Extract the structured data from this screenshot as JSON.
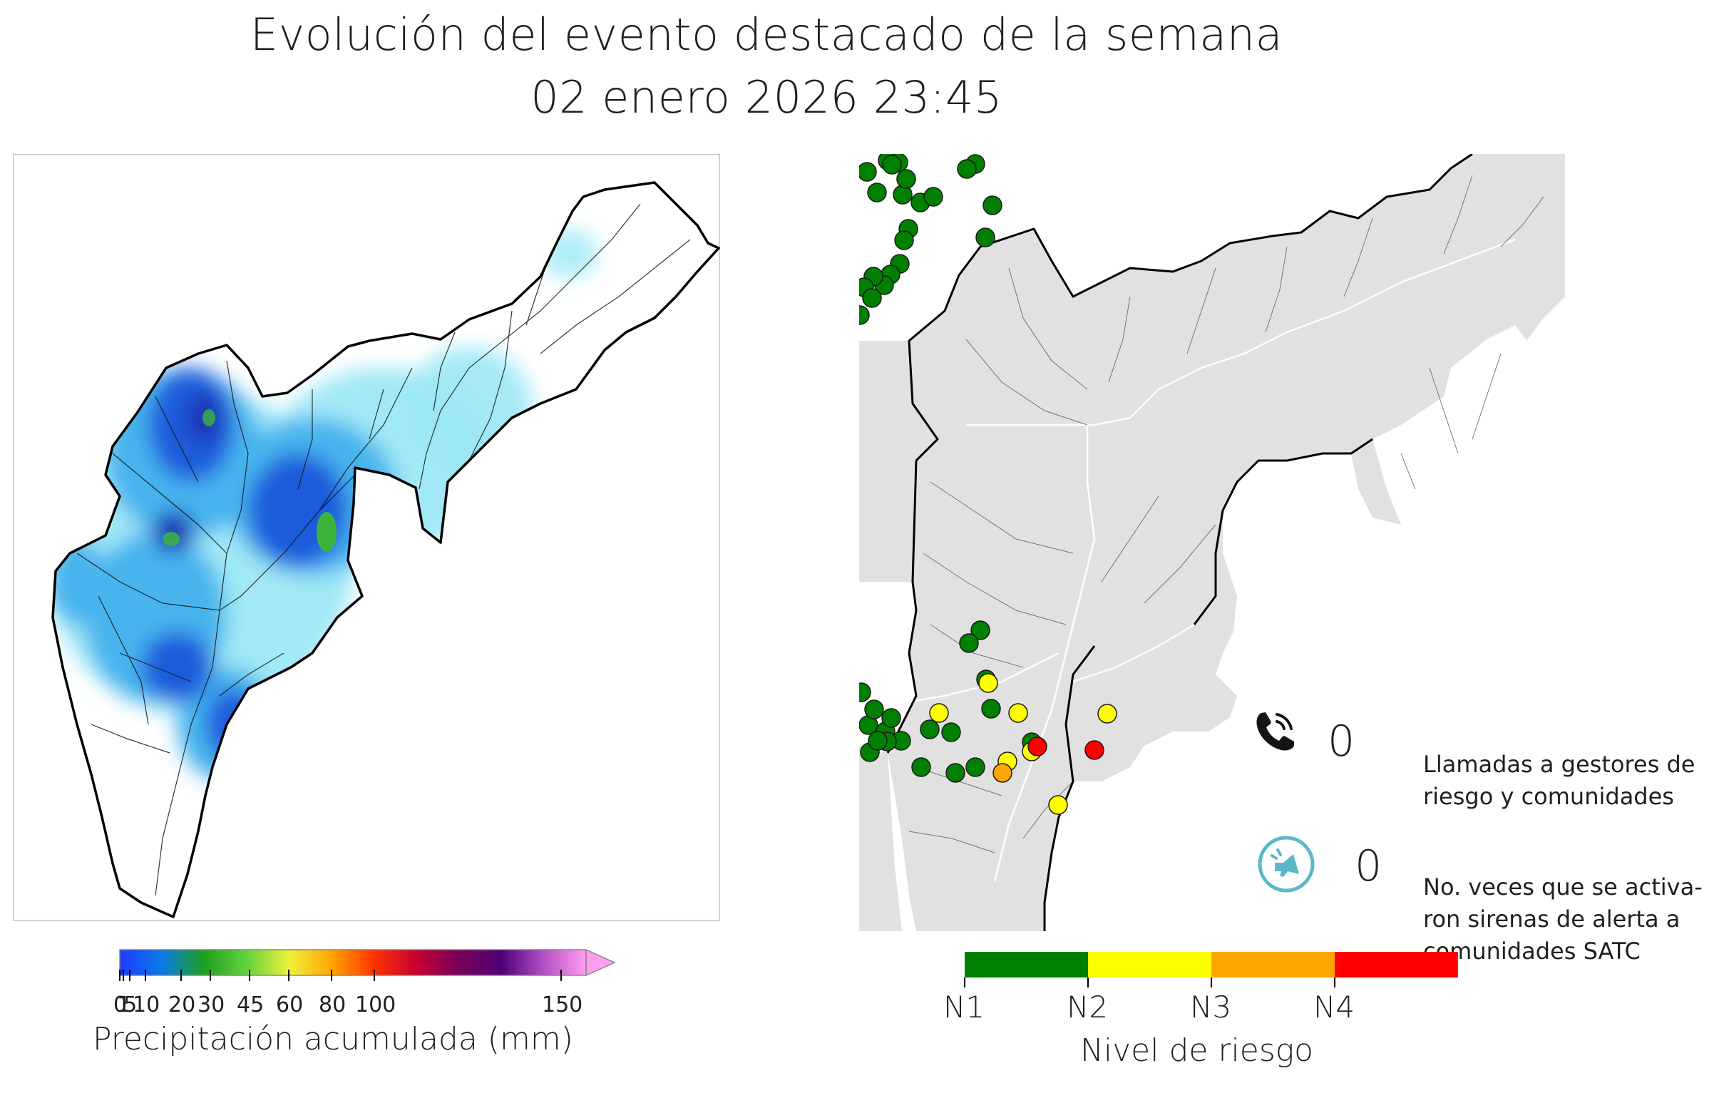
{
  "header": {
    "title_line1": "Evolución del evento destacado de la semana",
    "title_line2": "02 enero 2026 23:45"
  },
  "precip_map": {
    "colorbar_label": "Precipitación acumulada (mm)",
    "colorbar_ticks": [
      "0",
      "1",
      "5",
      "10",
      "20",
      "30",
      "45",
      "60",
      "80",
      "100",
      "150"
    ],
    "colorbar_stops": [
      "#1e3cff",
      "#0a7ae6",
      "#1ea01e",
      "#64d23c",
      "#f0f03c",
      "#ffa500",
      "#ff3200",
      "#c80032",
      "#78005a",
      "#500078",
      "#b450c8",
      "#ff9ef0"
    ],
    "rain_colors": {
      "light": "#9ce8f5",
      "mid": "#46b4ee",
      "heavy": "#1e5cdc",
      "very_heavy": "#1e32b4",
      "green": "#3cb43c"
    }
  },
  "risk_map": {
    "risk_colors": {
      "N1": "#008000",
      "N2": "#ffff00",
      "N3": "#ffa500",
      "N4": "#ff0000"
    },
    "colorbar_label": "Nivel de riesgo",
    "levels": [
      "N1",
      "N2",
      "N3",
      "N4"
    ],
    "calls": {
      "icon": "phone-icon",
      "count": "0",
      "description": "Llamadas a gestores de riesgo y comunidades"
    },
    "sirens": {
      "icon": "siren-icon",
      "count": "0",
      "description_lines": [
        "No. veces que se activa-",
        "ron sirenas de alerta a",
        "comunidades SATC"
      ]
    }
  }
}
